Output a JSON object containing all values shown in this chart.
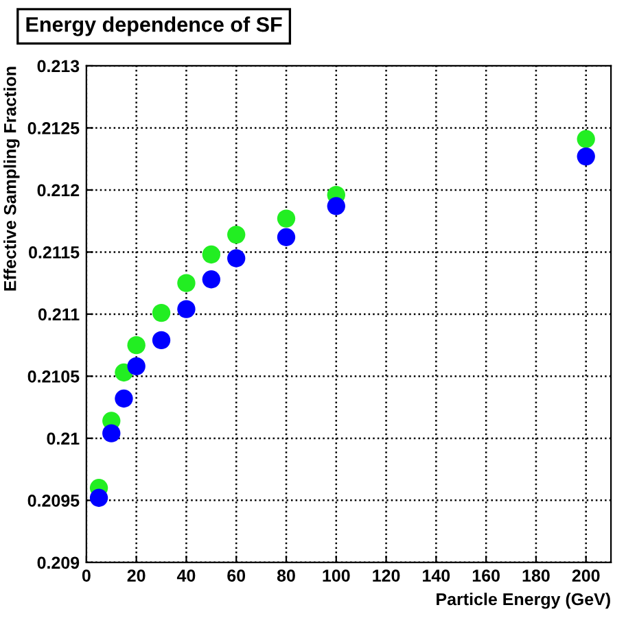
{
  "chart_data": {
    "type": "scatter",
    "title": "Energy dependence of SF",
    "xlabel": "Particle Energy (GeV)",
    "ylabel": "Effective Sampling Fraction",
    "x": [
      5,
      10,
      15,
      20,
      30,
      40,
      50,
      60,
      80,
      100,
      200
    ],
    "series": [
      {
        "color": "#22ee22",
        "values": [
          0.2096,
          0.21014,
          0.21053,
          0.21075,
          0.21101,
          0.21125,
          0.21148,
          0.21164,
          0.21177,
          0.21196,
          0.21241
        ]
      },
      {
        "color": "#0000ff",
        "values": [
          0.20952,
          0.21004,
          0.21032,
          0.21058,
          0.21079,
          0.21104,
          0.21128,
          0.21145,
          0.21162,
          0.21187,
          0.21227
        ]
      }
    ],
    "xlim": [
      0,
      210
    ],
    "xticks": [
      0,
      20,
      40,
      60,
      80,
      100,
      120,
      140,
      160,
      180,
      200
    ],
    "ylim": [
      0.209,
      0.213
    ],
    "yticks": [
      0.209,
      0.2095,
      0.21,
      0.2105,
      0.211,
      0.2115,
      0.212,
      0.2125,
      0.213
    ],
    "grid": true,
    "marker": "circle",
    "legend": false
  }
}
